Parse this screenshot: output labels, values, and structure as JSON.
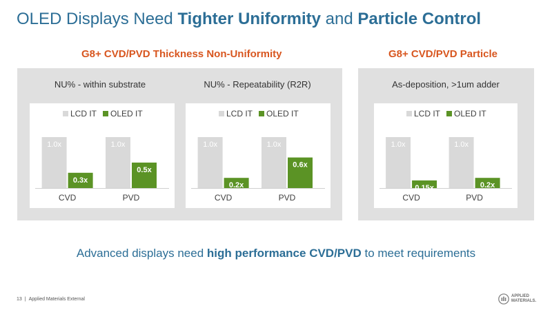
{
  "title": {
    "part1": "OLED Displays Need ",
    "part2": "Tighter Uniformity",
    "part3": " and ",
    "part4": "Particle Control"
  },
  "sections": {
    "left_heading": "G8+ CVD/PVD Thickness Non-Uniformity",
    "right_heading": "G8+ CVD/PVD Particle"
  },
  "colors": {
    "lcd": "#d9d9d9",
    "oled": "#5b9325",
    "accent": "#d8561f",
    "title": "#2c6e96"
  },
  "chart_data": [
    {
      "type": "bar",
      "title": "NU% - within substrate",
      "categories": [
        "CVD",
        "PVD"
      ],
      "series": [
        {
          "name": "LCD IT",
          "values": [
            1.0,
            1.0
          ],
          "labels": [
            "1.0x",
            "1.0x"
          ]
        },
        {
          "name": "OLED IT",
          "values": [
            0.3,
            0.5
          ],
          "labels": [
            "0.3x",
            "0.5x"
          ]
        }
      ],
      "ylim": [
        0,
        1.0
      ],
      "legend": "top",
      "grid": false
    },
    {
      "type": "bar",
      "title": "NU% - Repeatability (R2R)",
      "categories": [
        "CVD",
        "PVD"
      ],
      "series": [
        {
          "name": "LCD IT",
          "values": [
            1.0,
            1.0
          ],
          "labels": [
            "1.0x",
            "1.0x"
          ]
        },
        {
          "name": "OLED IT",
          "values": [
            0.2,
            0.6
          ],
          "labels": [
            "0.2x",
            "0.6x"
          ]
        }
      ],
      "ylim": [
        0,
        1.0
      ],
      "legend": "top",
      "grid": false
    },
    {
      "type": "bar",
      "title": "As-deposition, >1um adder",
      "categories": [
        "CVD",
        "PVD"
      ],
      "series": [
        {
          "name": "LCD IT",
          "values": [
            1.0,
            1.0
          ],
          "labels": [
            "1.0x",
            "1.0x"
          ]
        },
        {
          "name": "OLED IT",
          "values": [
            0.15,
            0.2
          ],
          "labels": [
            "0.15x",
            "0.2x"
          ]
        }
      ],
      "ylim": [
        0,
        1.0
      ],
      "legend": "top",
      "grid": false
    }
  ],
  "bottom": {
    "part1": "Advanced displays need ",
    "part2": "high performance CVD/PVD",
    "part3": " to meet requirements"
  },
  "footer": {
    "page_number": "13",
    "separator": "|",
    "classification": "Applied Materials External"
  },
  "logo": {
    "line1": "APPLIED",
    "line2": "MATERIALS."
  }
}
